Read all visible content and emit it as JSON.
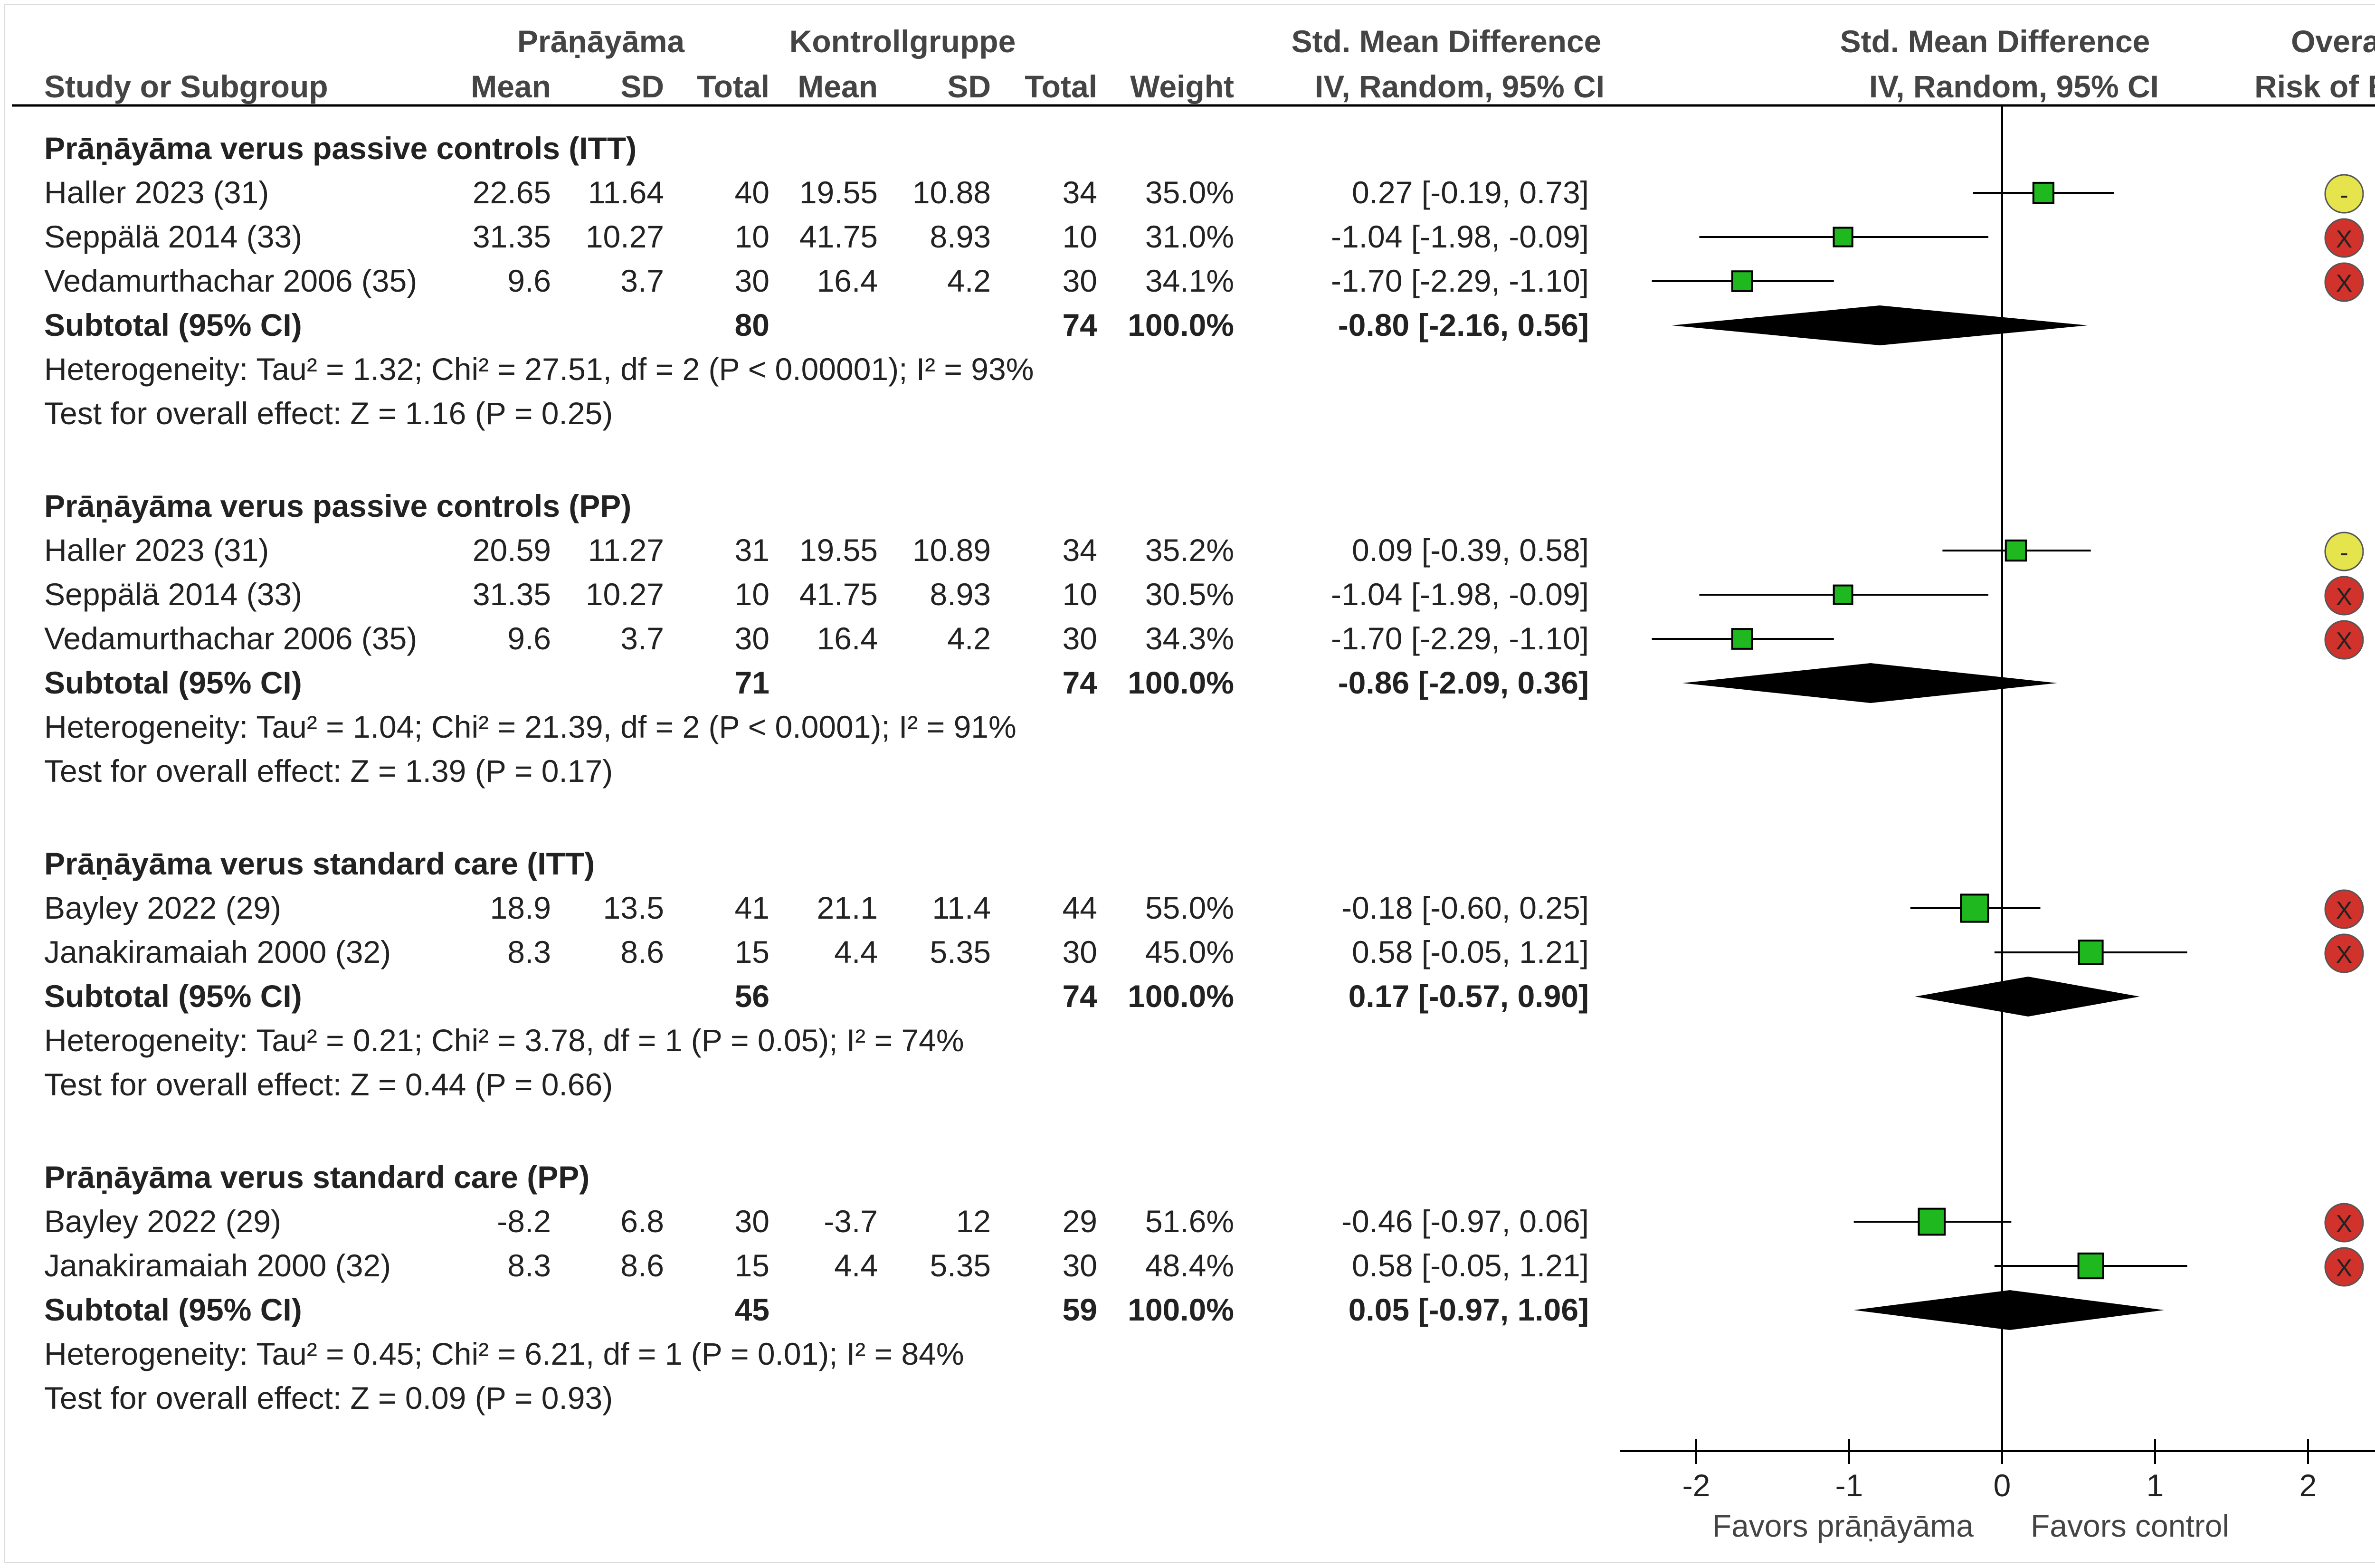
{
  "colors": {
    "study_marker": "#1fb81f",
    "diamond": "#000000",
    "risk_low": "#3cb043",
    "risk_some_concerns": "#e6e44d",
    "risk_high": "#d1322b"
  },
  "header": {
    "col_study": "Study or Subgroup",
    "group1": "Prāṇāyāma",
    "group2": "Kontrollgruppe",
    "mean": "Mean",
    "sd": "SD",
    "total": "Total",
    "weight": "Weight",
    "smd_title": "Std. Mean Difference",
    "smd_method": "IV, Random, 95% CI",
    "rob_title": "Overall",
    "rob_sub": "Risk of Bias"
  },
  "chart_data": {
    "type": "forest",
    "effect_measure": "Std. Mean Difference",
    "method": "IV, Random, 95% CI",
    "x_range": [
      -2.5,
      3.0
    ],
    "x_ticks": [
      -2,
      -1,
      0,
      1,
      2
    ],
    "x_tick_labels": [
      "-2",
      "-1",
      "0",
      "1",
      "2"
    ],
    "favors_left": "Favors prāṇāyāma",
    "favors_right": "Favors control",
    "subgroups": [
      {
        "title": "Prāṇāyāma verus passive controls (ITT)",
        "studies": [
          {
            "study": "Haller 2023 (31)",
            "mean1": "22.65",
            "sd1": "11.64",
            "n1": "40",
            "mean2": "19.55",
            "sd2": "10.88",
            "n2": "34",
            "weight": "35.0%",
            "ci_text": "0.27 [-0.19, 0.73]",
            "est": 0.27,
            "lo": -0.19,
            "hi": 0.73,
            "weight_pct": 35.0,
            "rob": "some_concerns",
            "rob_symbol": "-"
          },
          {
            "study": "Seppälä 2014 (33)",
            "mean1": "31.35",
            "sd1": "10.27",
            "n1": "10",
            "mean2": "41.75",
            "sd2": "8.93",
            "n2": "10",
            "weight": "31.0%",
            "ci_text": "-1.04 [-1.98, -0.09]",
            "est": -1.04,
            "lo": -1.98,
            "hi": -0.09,
            "weight_pct": 31.0,
            "rob": "high",
            "rob_symbol": "X"
          },
          {
            "study": "Vedamurthachar 2006 (35)",
            "mean1": "9.6",
            "sd1": "3.7",
            "n1": "30",
            "mean2": "16.4",
            "sd2": "4.2",
            "n2": "30",
            "weight": "34.1%",
            "ci_text": "-1.70 [-2.29, -1.10]",
            "est": -1.7,
            "lo": -2.29,
            "hi": -1.1,
            "weight_pct": 34.1,
            "rob": "high",
            "rob_symbol": "X"
          }
        ],
        "subtotal": {
          "label": "Subtotal (95% CI)",
          "n1": "80",
          "n2": "74",
          "weight": "100.0%",
          "ci_text": "-0.80 [-2.16, 0.56]",
          "est": -0.8,
          "lo": -2.16,
          "hi": 0.56
        },
        "heterogeneity": "Heterogeneity: Tau² = 1.32; Chi² = 27.51, df = 2 (P < 0.00001); I² = 93%",
        "overall_effect": "Test for overall effect: Z = 1.16 (P = 0.25)"
      },
      {
        "title": "Prāṇāyāma verus passive controls (PP)",
        "studies": [
          {
            "study": "Haller 2023 (31)",
            "mean1": "20.59",
            "sd1": "11.27",
            "n1": "31",
            "mean2": "19.55",
            "sd2": "10.89",
            "n2": "34",
            "weight": "35.2%",
            "ci_text": "0.09 [-0.39, 0.58]",
            "est": 0.09,
            "lo": -0.39,
            "hi": 0.58,
            "weight_pct": 35.2,
            "rob": "some_concerns",
            "rob_symbol": "-"
          },
          {
            "study": "Seppälä 2014 (33)",
            "mean1": "31.35",
            "sd1": "10.27",
            "n1": "10",
            "mean2": "41.75",
            "sd2": "8.93",
            "n2": "10",
            "weight": "30.5%",
            "ci_text": "-1.04 [-1.98, -0.09]",
            "est": -1.04,
            "lo": -1.98,
            "hi": -0.09,
            "weight_pct": 30.5,
            "rob": "high",
            "rob_symbol": "X"
          },
          {
            "study": "Vedamurthachar 2006 (35)",
            "mean1": "9.6",
            "sd1": "3.7",
            "n1": "30",
            "mean2": "16.4",
            "sd2": "4.2",
            "n2": "30",
            "weight": "34.3%",
            "ci_text": "-1.70 [-2.29, -1.10]",
            "est": -1.7,
            "lo": -2.29,
            "hi": -1.1,
            "weight_pct": 34.3,
            "rob": "high",
            "rob_symbol": "X"
          }
        ],
        "subtotal": {
          "label": "Subtotal (95% CI)",
          "n1": "71",
          "n2": "74",
          "weight": "100.0%",
          "ci_text": "-0.86 [-2.09, 0.36]",
          "est": -0.86,
          "lo": -2.09,
          "hi": 0.36
        },
        "heterogeneity": "Heterogeneity: Tau² = 1.04; Chi² = 21.39, df = 2 (P < 0.0001); I² = 91%",
        "overall_effect": "Test for overall effect: Z = 1.39 (P = 0.17)"
      },
      {
        "title": "Prāṇāyāma verus standard care (ITT)",
        "studies": [
          {
            "study": "Bayley 2022 (29)",
            "mean1": "18.9",
            "sd1": "13.5",
            "n1": "41",
            "mean2": "21.1",
            "sd2": "11.4",
            "n2": "44",
            "weight": "55.0%",
            "ci_text": "-0.18 [-0.60, 0.25]",
            "est": -0.18,
            "lo": -0.6,
            "hi": 0.25,
            "weight_pct": 55.0,
            "rob": "high",
            "rob_symbol": "X"
          },
          {
            "study": "Janakiramaiah 2000 (32)",
            "mean1": "8.3",
            "sd1": "8.6",
            "n1": "15",
            "mean2": "4.4",
            "sd2": "5.35",
            "n2": "30",
            "weight": "45.0%",
            "ci_text": "0.58 [-0.05, 1.21]",
            "est": 0.58,
            "lo": -0.05,
            "hi": 1.21,
            "weight_pct": 45.0,
            "rob": "high",
            "rob_symbol": "X"
          }
        ],
        "subtotal": {
          "label": "Subtotal (95% CI)",
          "n1": "56",
          "n2": "74",
          "weight": "100.0%",
          "ci_text": "0.17 [-0.57, 0.90]",
          "est": 0.17,
          "lo": -0.57,
          "hi": 0.9
        },
        "heterogeneity": "Heterogeneity: Tau² = 0.21; Chi² = 3.78, df = 1 (P = 0.05); I² = 74%",
        "overall_effect": "Test for overall effect: Z = 0.44 (P = 0.66)"
      },
      {
        "title": "Prāṇāyāma verus standard care (PP)",
        "studies": [
          {
            "study": "Bayley 2022 (29)",
            "mean1": "-8.2",
            "sd1": "6.8",
            "n1": "30",
            "mean2": "-3.7",
            "sd2": "12",
            "n2": "29",
            "weight": "51.6%",
            "ci_text": "-0.46 [-0.97, 0.06]",
            "est": -0.46,
            "lo": -0.97,
            "hi": 0.06,
            "weight_pct": 51.6,
            "rob": "high",
            "rob_symbol": "X"
          },
          {
            "study": "Janakiramaiah 2000 (32)",
            "mean1": "8.3",
            "sd1": "8.6",
            "n1": "15",
            "mean2": "4.4",
            "sd2": "5.35",
            "n2": "30",
            "weight": "48.4%",
            "ci_text": "0.58 [-0.05, 1.21]",
            "est": 0.58,
            "lo": -0.05,
            "hi": 1.21,
            "weight_pct": 48.4,
            "rob": "high",
            "rob_symbol": "X"
          }
        ],
        "subtotal": {
          "label": "Subtotal (95% CI)",
          "n1": "45",
          "n2": "59",
          "weight": "100.0%",
          "ci_text": "0.05 [-0.97, 1.06]",
          "est": 0.05,
          "lo": -0.97,
          "hi": 1.06
        },
        "heterogeneity": "Heterogeneity: Tau² = 0.45; Chi² = 6.21, df = 1 (P = 0.01); I² = 84%",
        "overall_effect": "Test for overall effect: Z = 0.09 (P = 0.93)"
      }
    ]
  }
}
